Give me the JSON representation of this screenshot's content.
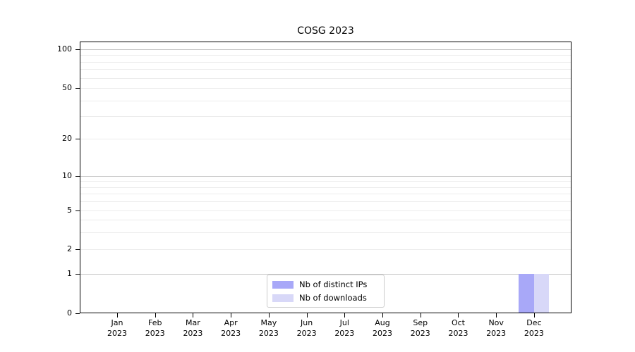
{
  "figure": {
    "title": "COSG 2023"
  },
  "colors": {
    "background": "#ffffff",
    "spine": "#000000",
    "grid_major": "#c3c3c3",
    "grid_minor": "#ececec",
    "legend_border": "#cccccc",
    "text": "#000000",
    "bar_distinct_ips": "#a8a8f8",
    "bar_downloads": "#d8d8f8"
  },
  "chart_data": {
    "type": "bar",
    "title": "COSG 2023",
    "categories": [
      "Jan",
      "Feb",
      "Mar",
      "Apr",
      "May",
      "Jun",
      "Jul",
      "Aug",
      "Sep",
      "Oct",
      "Nov",
      "Dec"
    ],
    "category_year": "2023",
    "series": [
      {
        "name": "Nb of distinct IPs",
        "color": "#a8a8f8",
        "values": [
          0,
          0,
          0,
          0,
          0,
          0,
          0,
          0,
          0,
          0,
          0,
          1
        ]
      },
      {
        "name": "Nb of downloads",
        "color": "#d8d8f8",
        "values": [
          0,
          0,
          0,
          0,
          0,
          0,
          0,
          0,
          0,
          0,
          0,
          1
        ]
      }
    ],
    "xlabel": "",
    "ylabel": "",
    "y_axis": {
      "scale": "log above 1, linear 0-1 (symlog-like)",
      "ticks": [
        0,
        1,
        2,
        5,
        10,
        20,
        50,
        100
      ],
      "major_gridlines": [
        1,
        10,
        100
      ],
      "minor_gridlines": [
        2,
        3,
        4,
        5,
        6,
        7,
        8,
        9,
        20,
        30,
        40,
        50,
        60,
        70,
        80,
        90
      ],
      "ylim": [
        0,
        115
      ]
    },
    "legend": {
      "position": "lower center",
      "entries": [
        "Nb of distinct IPs",
        "Nb of downloads"
      ]
    },
    "grid": "horizontal only"
  }
}
